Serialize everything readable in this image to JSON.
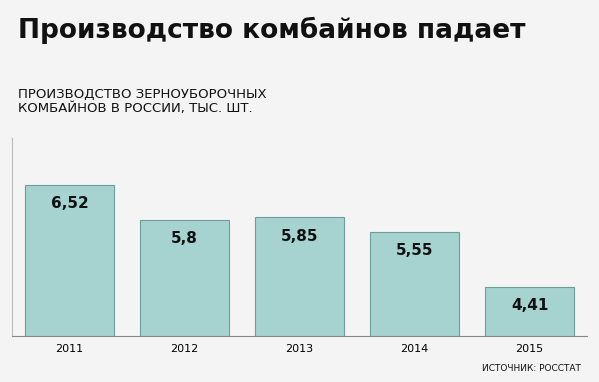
{
  "chart_data": {
    "type": "bar",
    "title": "Производство комбайнов падает",
    "subtitle": "ПРОИЗВОДСТВО ЗЕРНОУБОРОЧНЫХ\nКОМБАЙНОВ В РОССИИ, ТЫС. ШТ.",
    "source": "ИСТОЧНИК: РОССТАТ",
    "categories": [
      "2011",
      "2012",
      "2013",
      "2014",
      "2015"
    ],
    "values": [
      6.52,
      5.8,
      5.85,
      5.55,
      4.41
    ],
    "value_labels": [
      "6,52",
      "5,8",
      "5,85",
      "5,55",
      "4,41"
    ],
    "data_labels": true,
    "color": "#a6d3cf",
    "ylim": [
      3.4,
      7.5
    ],
    "yticks": [],
    "tick_labels": "x"
  }
}
